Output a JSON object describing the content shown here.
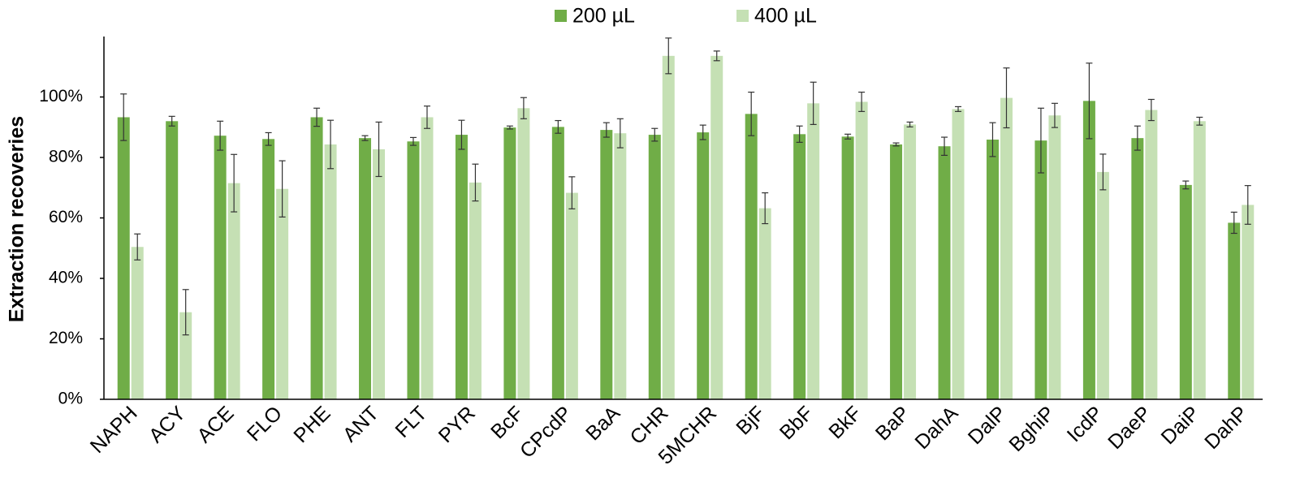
{
  "chart_data": {
    "type": "bar",
    "ylabel": "Extraction recoveries",
    "categories": [
      "NAPH",
      "ACY",
      "ACE",
      "FLO",
      "PHE",
      "ANT",
      "FLT",
      "PYR",
      "BcF",
      "CPcdP",
      "BaA",
      "CHR",
      "5MCHR",
      "BjF",
      "BbF",
      "BkF",
      "BaP",
      "DahA",
      "DalP",
      "BghiP",
      "IcdP",
      "DaeP",
      "DaiP",
      "DahP"
    ],
    "series": [
      {
        "name": "200 µL",
        "color": "#70ad47",
        "values": [
          93.3,
          92.0,
          87.2,
          86.1,
          93.3,
          86.4,
          85.3,
          87.5,
          89.9,
          90.1,
          89.1,
          87.5,
          88.3,
          94.4,
          87.7,
          86.9,
          84.3,
          83.7,
          85.9,
          85.6,
          98.7,
          86.4,
          70.9,
          58.4
        ],
        "errors": [
          7.7,
          1.6,
          4.8,
          2.1,
          3.0,
          0.8,
          1.3,
          4.8,
          0.5,
          2.1,
          2.4,
          2.1,
          2.4,
          7.2,
          2.7,
          0.8,
          0.5,
          3.0,
          5.6,
          10.7,
          12.5,
          4.0,
          1.3,
          3.5
        ]
      },
      {
        "name": "400 µL",
        "color": "#c5e0b4",
        "values": [
          50.4,
          28.8,
          71.5,
          69.6,
          84.3,
          82.7,
          93.3,
          71.7,
          96.3,
          68.3,
          88.0,
          113.6,
          113.6,
          63.2,
          97.9,
          98.4,
          90.9,
          96.0,
          99.7,
          93.9,
          75.2,
          95.7,
          92.0,
          64.3
        ],
        "errors": [
          4.3,
          7.5,
          9.5,
          9.3,
          8.0,
          9.0,
          3.7,
          6.1,
          3.5,
          5.3,
          4.8,
          5.9,
          1.6,
          5.1,
          7.0,
          3.2,
          0.8,
          0.8,
          9.9,
          4.0,
          5.9,
          3.5,
          1.3,
          6.4
        ]
      }
    ],
    "ylim": [
      0,
      120
    ],
    "yticks": [
      {
        "value": 0,
        "label": "0%"
      },
      {
        "value": 20,
        "label": "20%"
      },
      {
        "value": 40,
        "label": "40%"
      },
      {
        "value": 60,
        "label": "60%"
      },
      {
        "value": 80,
        "label": "80%"
      },
      {
        "value": 100,
        "label": "100%"
      }
    ],
    "legend": "top",
    "grid": false
  }
}
